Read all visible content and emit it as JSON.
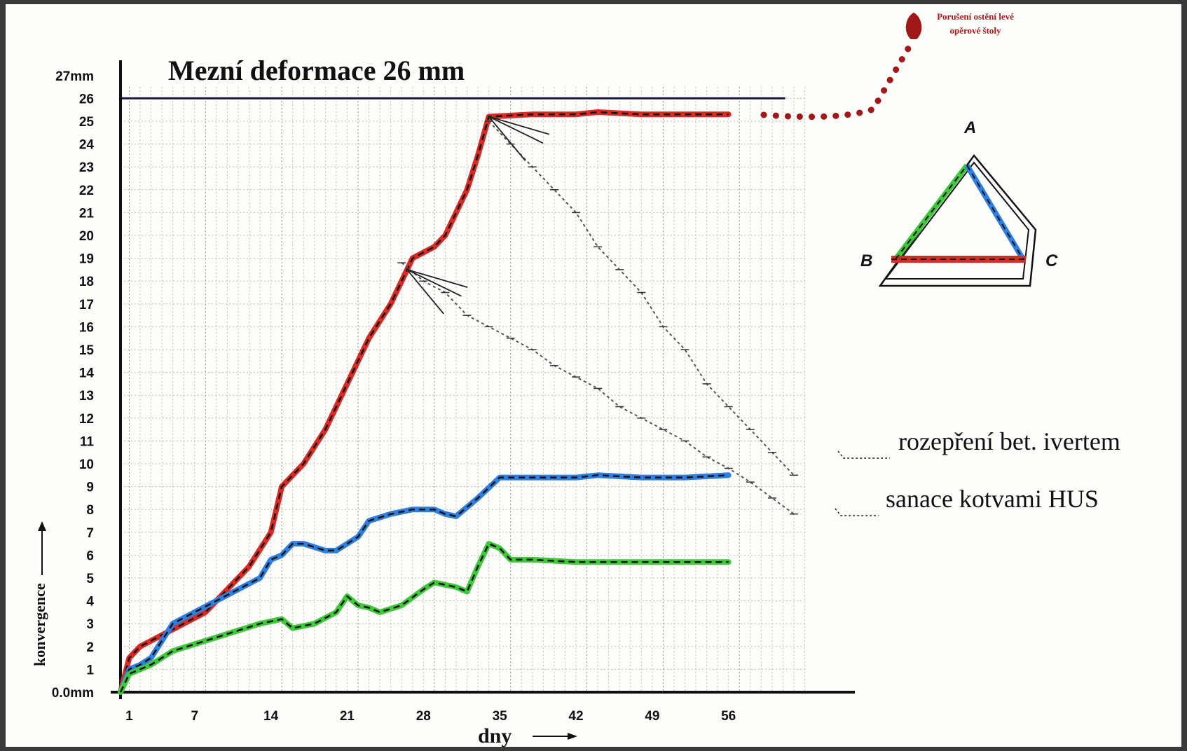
{
  "chart_data": {
    "type": "line",
    "title": "Mezní deformace 26 mm",
    "xlabel": "dny",
    "ylabel": "konvergence",
    "x_ticks": [
      "1",
      "7",
      "14",
      "21",
      "28",
      "35",
      "42",
      "49",
      "56"
    ],
    "y_ticks": [
      "0.0mm",
      "1",
      "2",
      "3",
      "4",
      "5",
      "6",
      "7",
      "8",
      "9",
      "10",
      "11",
      "12",
      "13",
      "14",
      "15",
      "16",
      "17",
      "18",
      "19",
      "20",
      "21",
      "22",
      "23",
      "24",
      "25",
      "26",
      "27mm"
    ],
    "xlim": [
      0.2,
      63
    ],
    "ylim": [
      0,
      27
    ],
    "grid": true,
    "limit_line": {
      "value": 26
    },
    "series": [
      {
        "color": "#d92a24",
        "points": [
          [
            0.2,
            0
          ],
          [
            1,
            1.5
          ],
          [
            2,
            2
          ],
          [
            4,
            2.5
          ],
          [
            6,
            3
          ],
          [
            8,
            3.5
          ],
          [
            10,
            4.5
          ],
          [
            12,
            5.5
          ],
          [
            14,
            7
          ],
          [
            15,
            9
          ],
          [
            17,
            10
          ],
          [
            19,
            11.5
          ],
          [
            21,
            13.5
          ],
          [
            23,
            15.5
          ],
          [
            25,
            17
          ],
          [
            26.5,
            18.5
          ],
          [
            27,
            19
          ],
          [
            29,
            19.5
          ],
          [
            30,
            20
          ],
          [
            32,
            22
          ],
          [
            33,
            23.5
          ],
          [
            34,
            25.2
          ],
          [
            38,
            25.3
          ],
          [
            42,
            25.3
          ],
          [
            44,
            25.4
          ],
          [
            48,
            25.3
          ],
          [
            52,
            25.3
          ],
          [
            56,
            25.3
          ]
        ]
      },
      {
        "color": "#2f7fe0",
        "points": [
          [
            0.2,
            0
          ],
          [
            1,
            1
          ],
          [
            2,
            1.2
          ],
          [
            3,
            1.5
          ],
          [
            5,
            3
          ],
          [
            7,
            3.5
          ],
          [
            9,
            4
          ],
          [
            11,
            4.5
          ],
          [
            13,
            5
          ],
          [
            14,
            5.8
          ],
          [
            15,
            6
          ],
          [
            16,
            6.5
          ],
          [
            17,
            6.5
          ],
          [
            19,
            6.2
          ],
          [
            20,
            6.2
          ],
          [
            22,
            6.8
          ],
          [
            23,
            7.5
          ],
          [
            25,
            7.8
          ],
          [
            27,
            8
          ],
          [
            29,
            8
          ],
          [
            30,
            7.8
          ],
          [
            31,
            7.7
          ],
          [
            33,
            8.5
          ],
          [
            35,
            9.4
          ],
          [
            38,
            9.4
          ],
          [
            42,
            9.4
          ],
          [
            44,
            9.5
          ],
          [
            48,
            9.4
          ],
          [
            52,
            9.4
          ],
          [
            56,
            9.5
          ]
        ]
      },
      {
        "color": "#3ec83a",
        "points": [
          [
            0.2,
            0
          ],
          [
            1,
            0.8
          ],
          [
            2,
            1
          ],
          [
            3,
            1.2
          ],
          [
            5,
            1.8
          ],
          [
            7,
            2.1
          ],
          [
            9,
            2.4
          ],
          [
            11,
            2.7
          ],
          [
            13,
            3
          ],
          [
            15,
            3.2
          ],
          [
            16,
            2.8
          ],
          [
            18,
            3
          ],
          [
            20,
            3.5
          ],
          [
            21,
            4.2
          ],
          [
            22,
            3.8
          ],
          [
            23,
            3.7
          ],
          [
            24,
            3.5
          ],
          [
            26,
            3.8
          ],
          [
            28,
            4.5
          ],
          [
            29,
            4.8
          ],
          [
            31,
            4.6
          ],
          [
            32,
            4.4
          ],
          [
            33,
            5.5
          ],
          [
            34,
            6.5
          ],
          [
            35,
            6.3
          ],
          [
            36,
            5.8
          ],
          [
            38,
            5.8
          ],
          [
            42,
            5.7
          ],
          [
            48,
            5.7
          ],
          [
            52,
            5.7
          ],
          [
            56,
            5.7
          ]
        ]
      },
      {
        "color": "#555555",
        "points": [
          [
            34,
            25
          ],
          [
            36,
            24
          ],
          [
            38,
            23
          ],
          [
            40,
            22
          ],
          [
            42,
            21
          ],
          [
            44,
            19.5
          ],
          [
            46,
            18.5
          ],
          [
            48,
            17.5
          ],
          [
            50,
            16
          ],
          [
            52,
            15
          ],
          [
            54,
            13.5
          ],
          [
            56,
            12.5
          ],
          [
            58,
            11.5
          ],
          [
            60,
            10.5
          ],
          [
            62,
            9.5
          ]
        ]
      },
      {
        "color": "#555555",
        "points": [
          [
            26,
            18.8
          ],
          [
            28,
            18
          ],
          [
            30,
            17.5
          ],
          [
            32,
            16.5
          ],
          [
            34,
            16
          ],
          [
            36,
            15.5
          ],
          [
            38,
            15
          ],
          [
            40,
            14.3
          ],
          [
            42,
            13.8
          ],
          [
            44,
            13.3
          ],
          [
            46,
            12.5
          ],
          [
            48,
            12
          ],
          [
            50,
            11.5
          ],
          [
            52,
            11
          ],
          [
            54,
            10.3
          ],
          [
            56,
            9.8
          ],
          [
            58,
            9.2
          ],
          [
            60,
            8.5
          ],
          [
            62,
            7.8
          ]
        ]
      }
    ],
    "annotations": {
      "ivertem": "rozepření bet. ivertem",
      "hus": "sanace kotvami HUS",
      "failure": [
        "Porušení ostění levé",
        "opěrové štoly"
      ]
    },
    "inset": {
      "vertices": [
        "A",
        "B",
        "C"
      ],
      "sides": {
        "AB": "#3ec83a",
        "AC": "#2f7fe0",
        "BC": "#d92a24"
      }
    }
  }
}
